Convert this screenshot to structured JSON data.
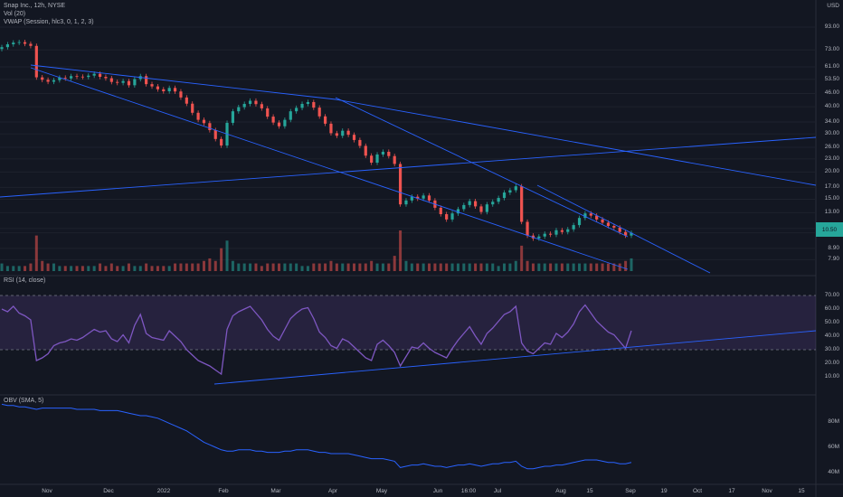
{
  "legend": {
    "title": "Snap Inc., 12h, NYSE",
    "vol": "Vol (20)",
    "vwap": "VWAP (Session, hlc3, 0, 1, 2, 3)",
    "rsi": "RSI (14, close)",
    "obv": "OBV (SMA, 5)"
  },
  "currency": "USD",
  "colors": {
    "up": "#26a69a",
    "down": "#ef5350",
    "line": "#2962ff",
    "rsi": "#7e57c2",
    "bg": "#131722",
    "grid": "#1e222d"
  },
  "chart_data": [
    {
      "type": "candlestick",
      "title": "Snap Inc., 12h, NYSE",
      "yscale": "log",
      "ylim": [
        7.0,
        93.0
      ],
      "ytick_labels": [
        "93.00",
        "73.00",
        "61.00",
        "53.50",
        "46.00",
        "40.00",
        "34.00",
        "30.00",
        "26.00",
        "23.00",
        "20.00",
        "17.00",
        "15.00",
        "13.00",
        "11.00",
        "10.50",
        "8.90",
        "7.90"
      ],
      "last_price": "10.50",
      "close": [
        75.2,
        77.5,
        78.9,
        79.3,
        77.9,
        76.2,
        54.6,
        53.2,
        52.1,
        53.0,
        54.4,
        54.0,
        55.3,
        55.0,
        54.8,
        55.6,
        56.7,
        54.9,
        54.1,
        52.0,
        51.5,
        52.5,
        50.2,
        53.6,
        55.3,
        50.8,
        49.6,
        48.1,
        47.1,
        48.8,
        47.0,
        44.1,
        41.3,
        37.5,
        34.8,
        33.6,
        31.2,
        28.4,
        26.5,
        33.7,
        38.1,
        39.8,
        41.2,
        42.6,
        41.1,
        39.3,
        36.0,
        33.8,
        32.5,
        34.8,
        38.1,
        39.5,
        41.2,
        42.0,
        39.6,
        36.1,
        33.4,
        30.2,
        29.4,
        31.0,
        29.7,
        28.1,
        26.4,
        23.8,
        22.1,
        24.1,
        24.8,
        23.7,
        21.8,
        14.2,
        14.8,
        15.4,
        15.1,
        15.6,
        14.8,
        13.7,
        12.8,
        12.1,
        12.9,
        13.5,
        14.1,
        14.7,
        13.9,
        13.1,
        14.2,
        14.6,
        15.2,
        16.1,
        16.5,
        17.2,
        11.8,
        10.2,
        9.9,
        10.1,
        10.4,
        10.3,
        10.8,
        10.6,
        10.9,
        11.4,
        12.3,
        12.9,
        12.6,
        12.1,
        11.7,
        11.3,
        11.1,
        10.6,
        10.2,
        10.5
      ]
    },
    {
      "type": "bar",
      "title": "Vol (20)",
      "values": [
        3,
        2,
        2,
        2,
        2,
        3,
        14,
        4,
        3,
        3,
        2,
        2,
        2,
        2,
        2,
        2,
        2,
        3,
        2,
        3,
        2,
        2,
        3,
        2,
        2,
        3,
        2,
        2,
        2,
        2,
        3,
        3,
        3,
        3,
        3,
        4,
        5,
        4,
        9,
        12,
        4,
        3,
        3,
        3,
        3,
        2,
        3,
        3,
        3,
        3,
        3,
        3,
        2,
        2,
        3,
        3,
        3,
        4,
        3,
        3,
        3,
        3,
        3,
        3,
        4,
        3,
        3,
        3,
        6,
        16,
        4,
        3,
        3,
        3,
        3,
        3,
        3,
        3,
        3,
        3,
        3,
        3,
        3,
        3,
        3,
        3,
        2,
        3,
        3,
        4,
        10,
        4,
        3,
        3,
        3,
        3,
        3,
        3,
        3,
        3,
        3,
        3,
        3,
        3,
        3,
        3,
        3,
        3,
        4,
        5
      ]
    },
    {
      "type": "line",
      "title": "RSI (14, close)",
      "ylim": [
        0,
        80
      ],
      "ytick_labels": [
        "70.00",
        "60.00",
        "50.00",
        "40.00",
        "30.00",
        "20.00",
        "10.00"
      ],
      "bands": [
        30,
        70
      ],
      "values": [
        60,
        58,
        62,
        57,
        55,
        52,
        22,
        24,
        27,
        33,
        35,
        36,
        38,
        37,
        39,
        42,
        45,
        43,
        44,
        38,
        36,
        41,
        35,
        48,
        56,
        42,
        39,
        38,
        37,
        44,
        40,
        36,
        30,
        26,
        22,
        20,
        18,
        15,
        12,
        45,
        55,
        58,
        60,
        62,
        57,
        52,
        45,
        40,
        37,
        45,
        53,
        57,
        60,
        61,
        53,
        43,
        39,
        33,
        31,
        38,
        36,
        32,
        28,
        24,
        22,
        34,
        37,
        33,
        28,
        18,
        25,
        32,
        31,
        35,
        31,
        28,
        26,
        24,
        31,
        37,
        42,
        47,
        40,
        34,
        42,
        46,
        51,
        56,
        58,
        62,
        35,
        29,
        27,
        31,
        35,
        34,
        42,
        39,
        43,
        49,
        58,
        63,
        57,
        51,
        47,
        43,
        41,
        36,
        31,
        44
      ]
    },
    {
      "type": "line",
      "title": "OBV (SMA, 5)",
      "ytick_labels": [
        "80M",
        "60M",
        "40M"
      ],
      "values": [
        94,
        93,
        93,
        92,
        92,
        91,
        90,
        91,
        91,
        91,
        91,
        91,
        91,
        90,
        90,
        90,
        90,
        89,
        89,
        89,
        89,
        88,
        87,
        86,
        85,
        85,
        84,
        83,
        81,
        79,
        77,
        75,
        73,
        70,
        67,
        64,
        62,
        60,
        58,
        57,
        57,
        58,
        58,
        58,
        57,
        57,
        56,
        56,
        56,
        57,
        57,
        58,
        58,
        58,
        57,
        56,
        56,
        55,
        55,
        55,
        55,
        54,
        53,
        52,
        51,
        51,
        51,
        50,
        49,
        44,
        45,
        46,
        46,
        47,
        46,
        45,
        45,
        44,
        45,
        46,
        46,
        47,
        46,
        45,
        46,
        47,
        47,
        48,
        48,
        49,
        45,
        43,
        43,
        44,
        45,
        45,
        46,
        46,
        47,
        48,
        49,
        50,
        50,
        50,
        49,
        48,
        48,
        47,
        47,
        48
      ]
    }
  ],
  "x_axis": {
    "ticks": [
      "Nov",
      "Dec",
      "2022",
      "Feb",
      "Mar",
      "Apr",
      "May",
      "Jun",
      "16:00",
      "Jul",
      "Aug",
      "15",
      "Sep",
      "19",
      "Oct",
      "17",
      "Nov",
      "15"
    ]
  }
}
